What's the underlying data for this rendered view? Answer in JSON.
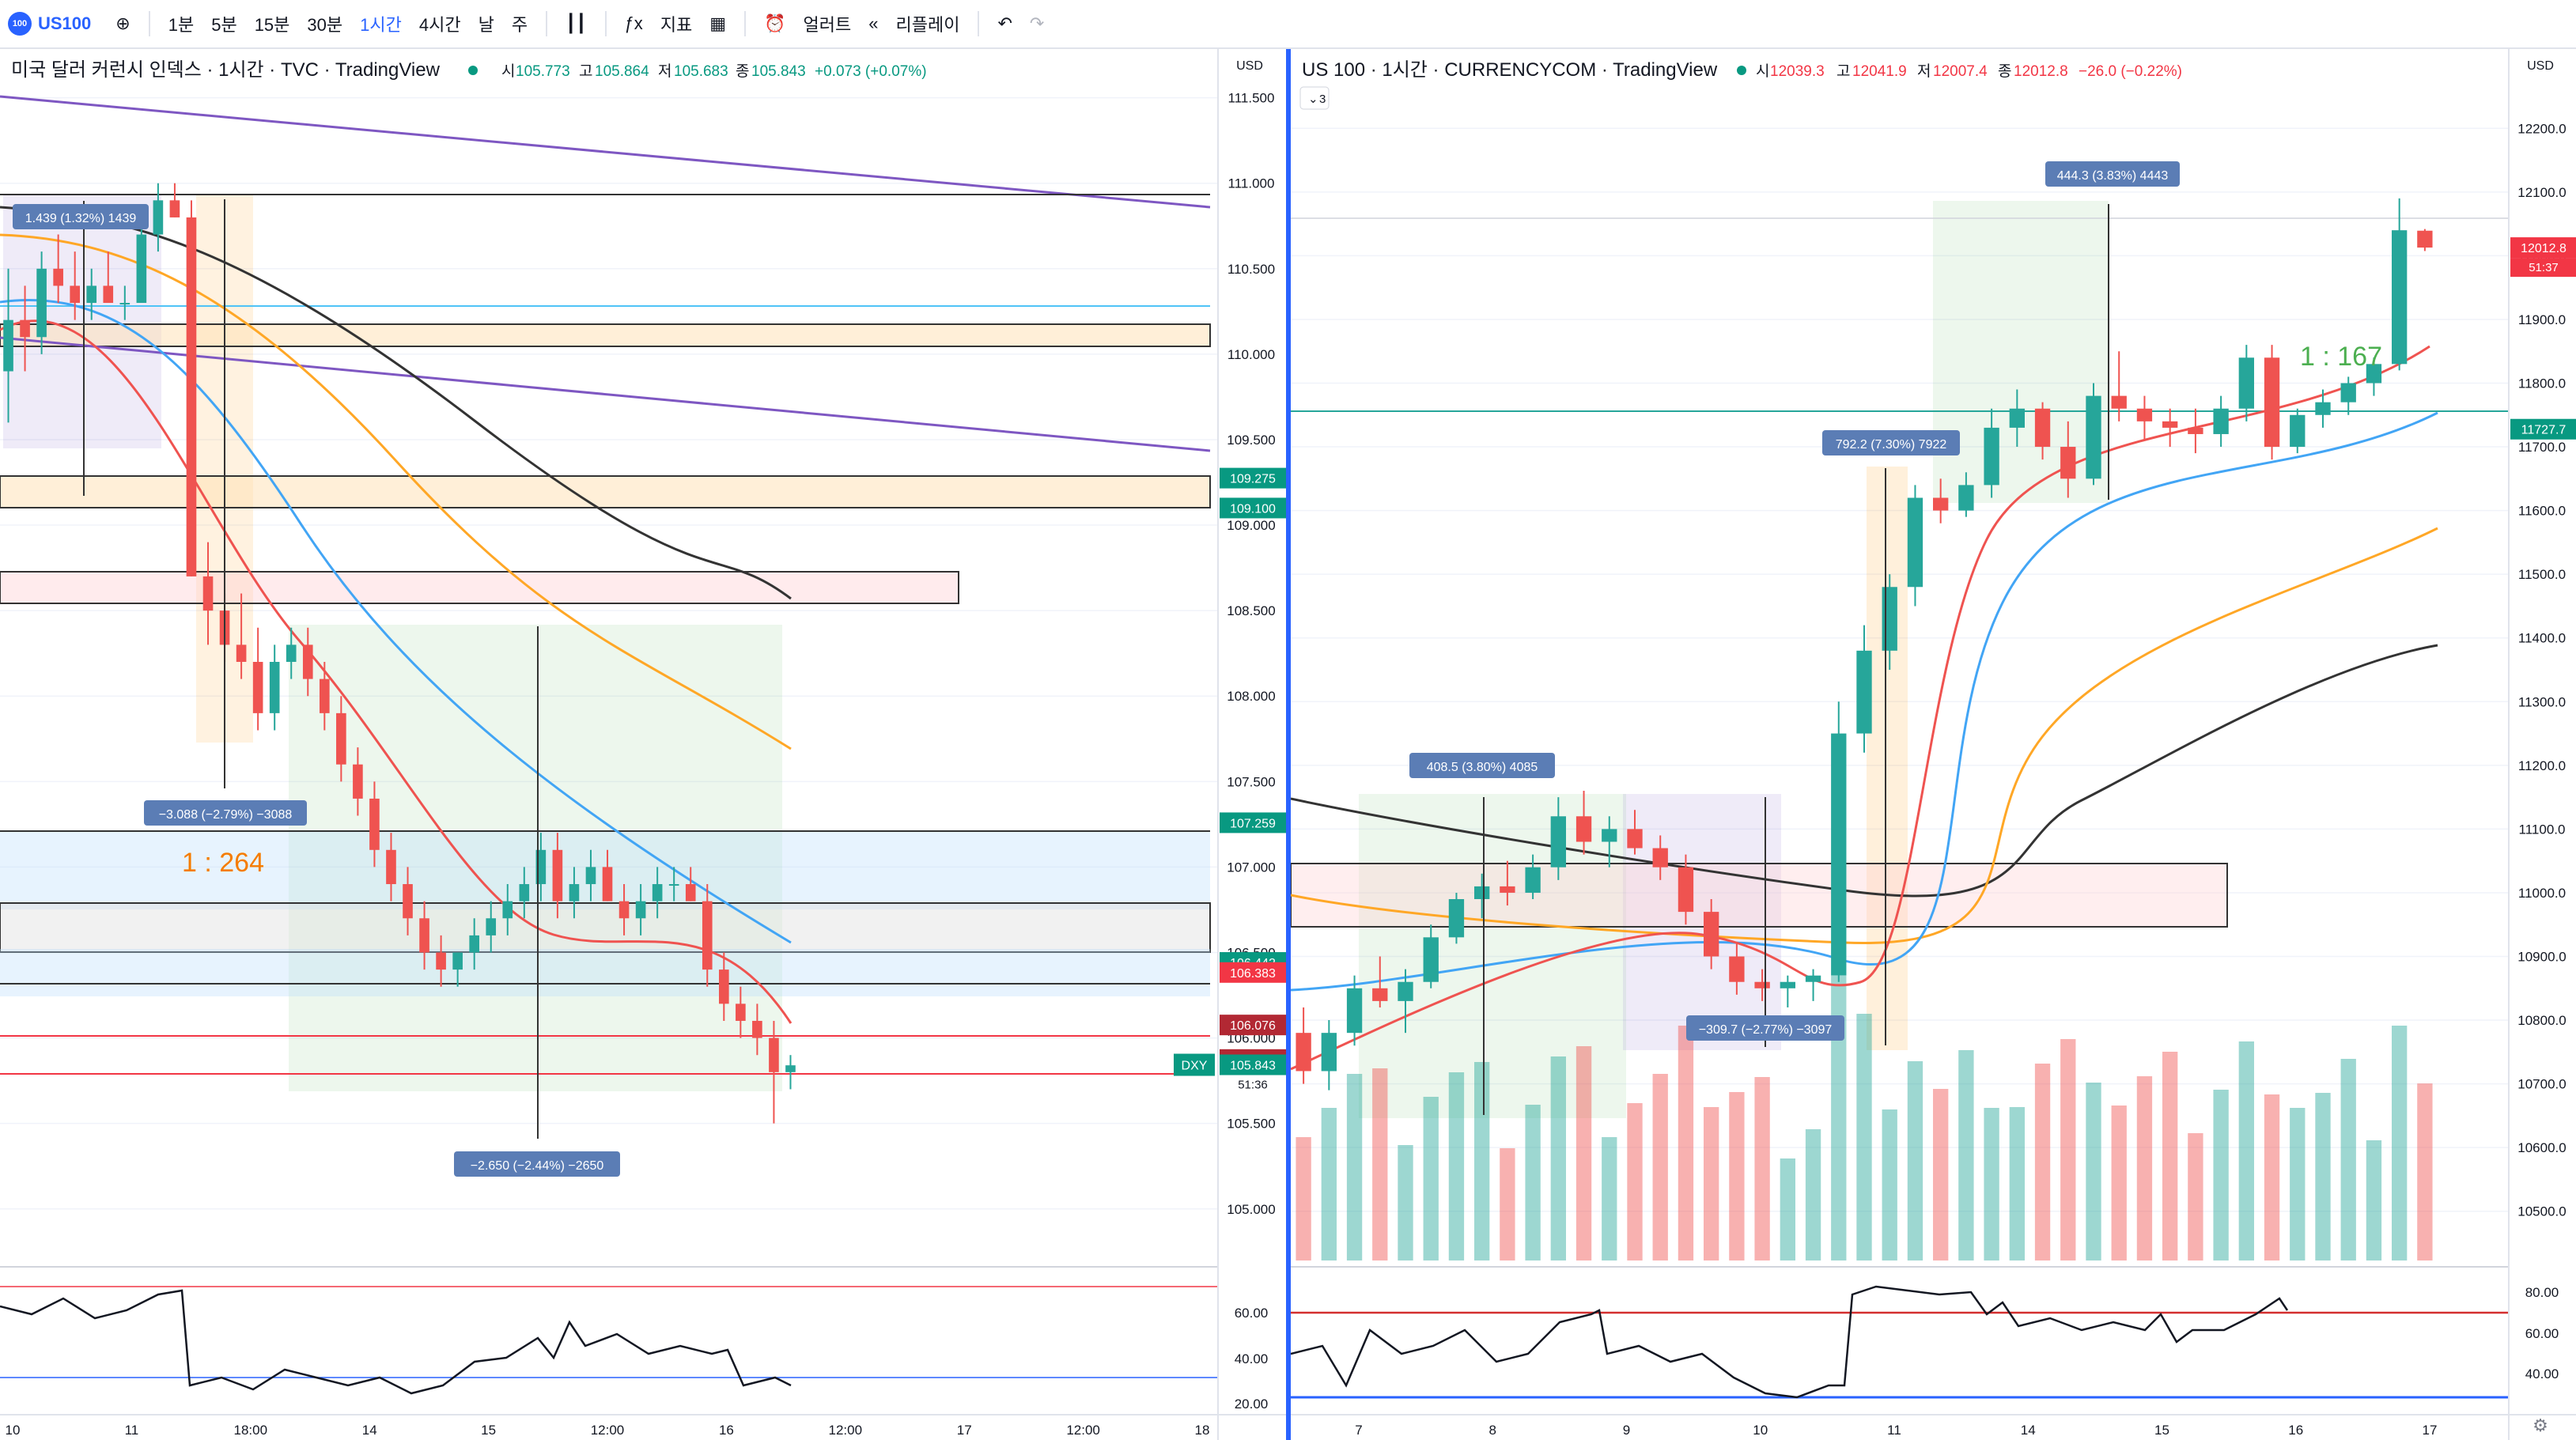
{
  "toolbar": {
    "symbol_logo": "100",
    "symbol": "US100",
    "add_icon": "plus-circle-icon",
    "intervals": [
      "1분",
      "5분",
      "15분",
      "30분",
      "1시간",
      "4시간",
      "날",
      "주"
    ],
    "active_interval": "1시간",
    "indicators_label": "지표",
    "alert_label": "얼러트",
    "replay_label": "리플레이"
  },
  "left": {
    "title": "미국 달러 커런시 인덱스 · 1시간 · TVC · TradingView",
    "ohlc": {
      "o_label": "시",
      "o": "105.773",
      "h_label": "고",
      "h": "105.864",
      "l_label": "저",
      "l": "105.683",
      "c_label": "종",
      "c": "105.843",
      "chg": "+0.073 (+0.07%)"
    },
    "currency": "USD",
    "ratio_label": "1 : 264",
    "measure_labels": [
      "1.439 (1.32%) 1439",
      "−3.088 (−2.79%) −3088",
      "−2.650 (−2.44%) −2650"
    ],
    "price_badges": [
      {
        "text": "109.275",
        "color": "#089981"
      },
      {
        "text": "109.100",
        "color": "#089981"
      },
      {
        "text": "107.259",
        "color": "#089981"
      },
      {
        "text": "106.442",
        "color": "#089981"
      },
      {
        "text": "106.383",
        "color": "#f23645"
      },
      {
        "text": "106.076",
        "color": "#b22833"
      },
      {
        "text": "105.874",
        "color": "#b22833"
      },
      {
        "text": "105.843",
        "color": "#089981"
      }
    ],
    "last_price_countdown": "51:36",
    "dxy_tag": "DXY",
    "osc_labels": [
      "60.00",
      "40.00",
      "20.00"
    ]
  },
  "right": {
    "title": "US 100 · 1시간 · CURRENCYCOM · TradingView",
    "ohlc": {
      "o_label": "시",
      "o": "12039.3",
      "h_label": "고",
      "h": "12041.9",
      "l_label": "저",
      "l": "12007.4",
      "c_label": "종",
      "c": "12012.8",
      "chg": "−26.0 (−0.22%)"
    },
    "currency": "USD",
    "collapse_count": "3",
    "ratio_label": "1 : 167",
    "measure_labels": [
      "444.3 (3.83%) 4443",
      "792.2 (7.30%) 7922",
      "408.5 (3.80%) 4085",
      "−309.7 (−2.77%) −3097"
    ],
    "price_badges": [
      {
        "text": "12012.8",
        "color": "#f23645"
      },
      {
        "text": "11727.7",
        "color": "#089981"
      }
    ],
    "last_price_countdown": "51:37",
    "osc_labels": [
      "80.00",
      "60.00",
      "40.00"
    ]
  },
  "chart_data": [
    {
      "type": "candlestick",
      "title": "미국 달러 커런시 인덱스 · 1시간 · TVC · TradingView",
      "x_ticks": [
        "10",
        "11",
        "18:00",
        "14",
        "15",
        "12:00",
        "16",
        "12:00",
        "17",
        "12:00",
        "18"
      ],
      "y_ticks": [
        "111.500",
        "111.000",
        "110.500",
        "110.000",
        "109.500",
        "109.000",
        "108.500",
        "108.000",
        "107.500",
        "107.000",
        "106.500",
        "106.000",
        "105.500",
        "105.000"
      ],
      "ylim": [
        104.8,
        111.6
      ],
      "ohlc_series": [
        [
          109.9,
          110.5,
          109.6,
          110.2
        ],
        [
          110.2,
          110.4,
          109.9,
          110.1
        ],
        [
          110.1,
          110.6,
          110.0,
          110.5
        ],
        [
          110.5,
          110.7,
          110.3,
          110.4
        ],
        [
          110.4,
          110.6,
          110.2,
          110.3
        ],
        [
          110.3,
          110.5,
          110.2,
          110.4
        ],
        [
          110.4,
          110.6,
          110.3,
          110.3
        ],
        [
          110.3,
          110.4,
          110.2,
          110.3
        ],
        [
          110.3,
          110.8,
          110.3,
          110.7
        ],
        [
          110.7,
          111.0,
          110.6,
          110.9
        ],
        [
          110.9,
          111.0,
          110.8,
          110.8
        ],
        [
          110.8,
          110.9,
          108.7,
          108.7
        ],
        [
          108.7,
          108.9,
          108.3,
          108.5
        ],
        [
          108.5,
          108.6,
          108.2,
          108.3
        ],
        [
          108.3,
          108.6,
          108.1,
          108.2
        ],
        [
          108.2,
          108.4,
          107.8,
          107.9
        ],
        [
          107.9,
          108.3,
          107.8,
          108.2
        ],
        [
          108.2,
          108.4,
          108.1,
          108.3
        ],
        [
          108.3,
          108.4,
          108.0,
          108.1
        ],
        [
          108.1,
          108.2,
          107.8,
          107.9
        ],
        [
          107.9,
          108.0,
          107.5,
          107.6
        ],
        [
          107.6,
          107.7,
          107.3,
          107.4
        ],
        [
          107.4,
          107.5,
          107.0,
          107.1
        ],
        [
          107.1,
          107.2,
          106.8,
          106.9
        ],
        [
          106.9,
          107.0,
          106.6,
          106.7
        ],
        [
          106.7,
          106.8,
          106.4,
          106.5
        ],
        [
          106.5,
          106.6,
          106.3,
          106.4
        ],
        [
          106.4,
          106.5,
          106.3,
          106.5
        ],
        [
          106.5,
          106.7,
          106.4,
          106.6
        ],
        [
          106.6,
          106.8,
          106.5,
          106.7
        ],
        [
          106.7,
          106.9,
          106.6,
          106.8
        ],
        [
          106.8,
          107.0,
          106.7,
          106.9
        ],
        [
          106.9,
          107.2,
          106.8,
          107.1
        ],
        [
          107.1,
          107.2,
          106.7,
          106.8
        ],
        [
          106.8,
          107.0,
          106.7,
          106.9
        ],
        [
          106.9,
          107.1,
          106.8,
          107.0
        ],
        [
          107.0,
          107.1,
          106.8,
          106.8
        ],
        [
          106.8,
          106.9,
          106.6,
          106.7
        ],
        [
          106.7,
          106.9,
          106.6,
          106.8
        ],
        [
          106.8,
          107.0,
          106.7,
          106.9
        ],
        [
          106.9,
          107.0,
          106.8,
          106.9
        ],
        [
          106.9,
          107.0,
          106.8,
          106.8
        ],
        [
          106.8,
          106.9,
          106.3,
          106.4
        ],
        [
          106.4,
          106.5,
          106.1,
          106.2
        ],
        [
          106.2,
          106.3,
          106.0,
          106.1
        ],
        [
          106.1,
          106.2,
          105.9,
          106.0
        ],
        [
          106.0,
          106.1,
          105.5,
          105.8
        ],
        [
          105.8,
          105.9,
          105.7,
          105.84
        ]
      ]
    },
    {
      "type": "candlestick",
      "title": "US 100 · 1시간 · CURRENCYCOM · TradingView",
      "x_ticks": [
        "7",
        "8",
        "9",
        "10",
        "11",
        "14",
        "15",
        "16",
        "17"
      ],
      "y_ticks": [
        "12200.0",
        "12100.0",
        "12000.0",
        "11900.0",
        "11800.0",
        "11700.0",
        "11600.0",
        "11500.0",
        "11400.0",
        "11300.0",
        "11200.0",
        "11100.0",
        "11000.0",
        "10900.0",
        "10800.0",
        "10700.0",
        "10600.0",
        "10500.0"
      ],
      "ylim": [
        10450,
        12250
      ],
      "ohlc_series": [
        [
          10780,
          10820,
          10700,
          10720
        ],
        [
          10720,
          10800,
          10690,
          10780
        ],
        [
          10780,
          10870,
          10760,
          10850
        ],
        [
          10850,
          10900,
          10820,
          10830
        ],
        [
          10830,
          10880,
          10780,
          10860
        ],
        [
          10860,
          10950,
          10850,
          10930
        ],
        [
          10930,
          11000,
          10920,
          10990
        ],
        [
          10990,
          11030,
          10960,
          11010
        ],
        [
          11010,
          11050,
          10980,
          11000
        ],
        [
          11000,
          11060,
          10990,
          11040
        ],
        [
          11040,
          11150,
          11020,
          11120
        ],
        [
          11120,
          11160,
          11060,
          11080
        ],
        [
          11080,
          11120,
          11040,
          11100
        ],
        [
          11100,
          11130,
          11060,
          11070
        ],
        [
          11070,
          11090,
          11020,
          11040
        ],
        [
          11040,
          11060,
          10950,
          10970
        ],
        [
          10970,
          10990,
          10880,
          10900
        ],
        [
          10900,
          10920,
          10840,
          10860
        ],
        [
          10860,
          10880,
          10830,
          10850
        ],
        [
          10850,
          10870,
          10820,
          10860
        ],
        [
          10860,
          10880,
          10830,
          10870
        ],
        [
          10870,
          11300,
          10860,
          11250
        ],
        [
          11250,
          11420,
          11220,
          11380
        ],
        [
          11380,
          11500,
          11350,
          11480
        ],
        [
          11480,
          11640,
          11450,
          11620
        ],
        [
          11620,
          11650,
          11580,
          11600
        ],
        [
          11600,
          11660,
          11590,
          11640
        ],
        [
          11640,
          11760,
          11620,
          11730
        ],
        [
          11730,
          11790,
          11700,
          11760
        ],
        [
          11760,
          11770,
          11680,
          11700
        ],
        [
          11700,
          11740,
          11620,
          11650
        ],
        [
          11650,
          11800,
          11640,
          11780
        ],
        [
          11780,
          11850,
          11740,
          11760
        ],
        [
          11760,
          11780,
          11710,
          11740
        ],
        [
          11740,
          11760,
          11700,
          11730
        ],
        [
          11730,
          11760,
          11690,
          11720
        ],
        [
          11720,
          11780,
          11700,
          11760
        ],
        [
          11760,
          11860,
          11740,
          11840
        ],
        [
          11840,
          11860,
          11680,
          11700
        ],
        [
          11700,
          11760,
          11690,
          11750
        ],
        [
          11750,
          11790,
          11730,
          11770
        ],
        [
          11770,
          11810,
          11750,
          11800
        ],
        [
          11800,
          11840,
          11780,
          11830
        ],
        [
          11830,
          12090,
          11820,
          12040
        ],
        [
          12039.3,
          12041.9,
          12007.4,
          12012.8
        ]
      ]
    }
  ]
}
